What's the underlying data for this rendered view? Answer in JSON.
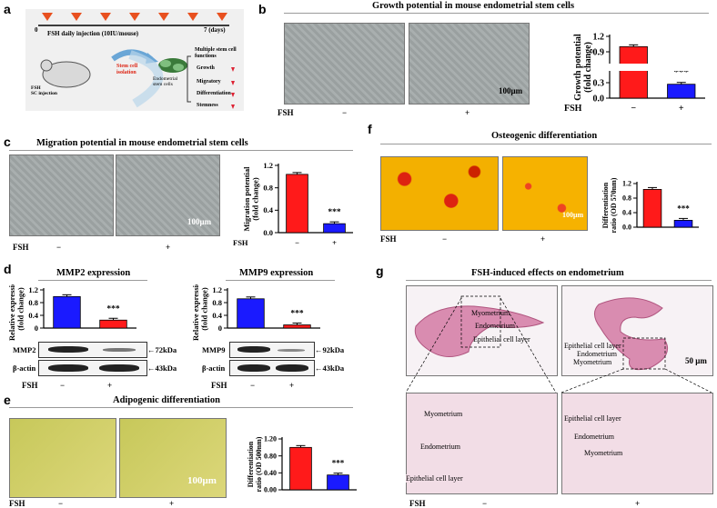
{
  "panel_letters": {
    "a": "a",
    "b": "b",
    "c": "c",
    "d": "d",
    "e": "e",
    "f": "f",
    "g": "g"
  },
  "panel_a": {
    "daily_injection": "FSH  daily injection (10IU/mouse)",
    "day0": "0",
    "day7": "7 (days)",
    "fsh_sc": "FSH\nSC injection",
    "stem_isolation": "Stem cell\nisolation",
    "endo_cells": "Endometrial\nstem cells",
    "functions_title": "Multiple stem cell\nfunctions",
    "functions": [
      "Growth",
      "Migratory",
      "Differentiation",
      "Stemness"
    ]
  },
  "panel_b": {
    "title": "Growth potential in mouse endometrial stem cells",
    "treatment_label": "FSH",
    "treatments": [
      "−",
      "+"
    ],
    "scale": "100μm",
    "sig": "***"
  },
  "panel_c": {
    "title": "Migration potential in mouse endometrial stem cells",
    "treatment_label": "FSH",
    "treatments": [
      "−",
      "+"
    ],
    "scale": "100μm",
    "sig": "***"
  },
  "panel_d": {
    "mmp2_title": "MMP2 expression",
    "mmp9_title": "MMP9 expression",
    "mmp2_label": "MMP2",
    "mmp9_label": "MMP9",
    "actin": "β-actin",
    "mmp2_kda": "72kDa",
    "mmp9_kda": "92kDa",
    "actin_kda": "43kDa",
    "treatment_label": "FSH",
    "treatments": [
      "−",
      "+"
    ],
    "sig": "***"
  },
  "panel_e": {
    "title": "Adipogenic differentiation",
    "treatment_label": "FSH",
    "treatments": [
      "−",
      "+"
    ],
    "scale": "100μm",
    "sig": "***"
  },
  "panel_f": {
    "title": "Osteogenic differentiation",
    "treatment_label": "FSH",
    "treatments": [
      "−",
      "+"
    ],
    "scale": "100μm",
    "sig": "***"
  },
  "panel_g": {
    "title": "FSH-induced effects on endometrium",
    "treatment_label": "FSH",
    "treatments": [
      "−",
      "+"
    ],
    "scale": "50 μm",
    "layers": [
      "Myometrium",
      "Endometrium",
      "Epithelial cell layer"
    ]
  },
  "chart_data": [
    {
      "id": "b",
      "type": "bar",
      "categories": [
        "−",
        "+"
      ],
      "values": [
        1.0,
        0.27
      ],
      "colors": [
        "#ff1a1a",
        "#1a1aff"
      ],
      "ylabel": "Growth potential\n(fold change)",
      "yticks": [
        "0.0",
        "0.3",
        "0.9",
        "1.2"
      ],
      "ylim": [
        0,
        1.2
      ],
      "axis_break": [
        0.3,
        0.9
      ]
    },
    {
      "id": "c",
      "type": "bar",
      "categories": [
        "−",
        "+"
      ],
      "values": [
        1.04,
        0.16
      ],
      "colors": [
        "#ff1a1a",
        "#1a1aff"
      ],
      "ylabel": "Migration potential\n(fold change)",
      "yticks": [
        "0.0",
        "0.4",
        "0.8",
        "1.2"
      ],
      "ylim": [
        0,
        1.2
      ]
    },
    {
      "id": "d1",
      "type": "bar",
      "categories": [
        "−",
        "+"
      ],
      "values": [
        0.99,
        0.25
      ],
      "colors": [
        "#1a1aff",
        "#ff1a1a"
      ],
      "ylabel": "Relative expression\n(fold change)",
      "yticks": [
        "0",
        "0.4",
        "0.8",
        "1.2"
      ],
      "ylim": [
        0,
        1.2
      ]
    },
    {
      "id": "d2",
      "type": "bar",
      "categories": [
        "−",
        "+"
      ],
      "values": [
        0.92,
        0.1
      ],
      "colors": [
        "#1a1aff",
        "#ff1a1a"
      ],
      "ylabel": "Relative expression\n(fold change)",
      "yticks": [
        "0",
        "0.4",
        "0.8",
        "1.2"
      ],
      "ylim": [
        0,
        1.2
      ]
    },
    {
      "id": "e",
      "type": "bar",
      "categories": [
        "−",
        "+"
      ],
      "values": [
        1.0,
        0.35
      ],
      "colors": [
        "#ff1a1a",
        "#1a1aff"
      ],
      "ylabel": "Differentiation\nratio (OD 500nm)",
      "yticks": [
        "0.00",
        "0.40",
        "0.80",
        "1.20"
      ],
      "ylim": [
        0,
        1.2
      ]
    },
    {
      "id": "f",
      "type": "bar",
      "categories": [
        "−",
        "+"
      ],
      "values": [
        1.04,
        0.19
      ],
      "colors": [
        "#ff1a1a",
        "#1a1aff"
      ],
      "ylabel": "Differentiation\nratio (OD 570nm)",
      "yticks": [
        "0.0",
        "0.4",
        "0.8",
        "1.2"
      ],
      "ylim": [
        0,
        1.2
      ]
    }
  ]
}
